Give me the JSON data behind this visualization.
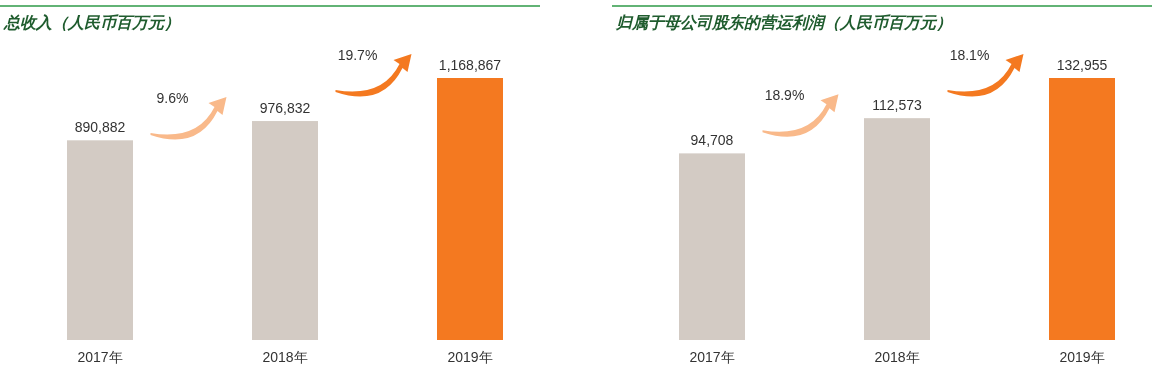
{
  "chart_data": [
    {
      "type": "bar",
      "title": "总收入（人民币百万元）",
      "categories": [
        "2017年",
        "2018年",
        "2019年"
      ],
      "values": [
        890882,
        976832,
        1168867
      ],
      "colors": [
        "#d3cbc4",
        "#d3cbc4",
        "#f47920"
      ],
      "value_labels": [
        "890,882",
        "976,832",
        "1,168,867"
      ],
      "annotations": [
        "9.6%",
        "19.7%"
      ]
    },
    {
      "type": "bar",
      "title": "归属于母公司股东的营运利润（人民币百万元）",
      "categories": [
        "2017年",
        "2018年",
        "2019年"
      ],
      "values": [
        94708,
        112573,
        132955
      ],
      "colors": [
        "#d3cbc4",
        "#d3cbc4",
        "#f47920"
      ],
      "value_labels": [
        "94,708",
        "112,573",
        "132,955"
      ],
      "annotations": [
        "18.9%",
        "18.1%"
      ]
    }
  ]
}
